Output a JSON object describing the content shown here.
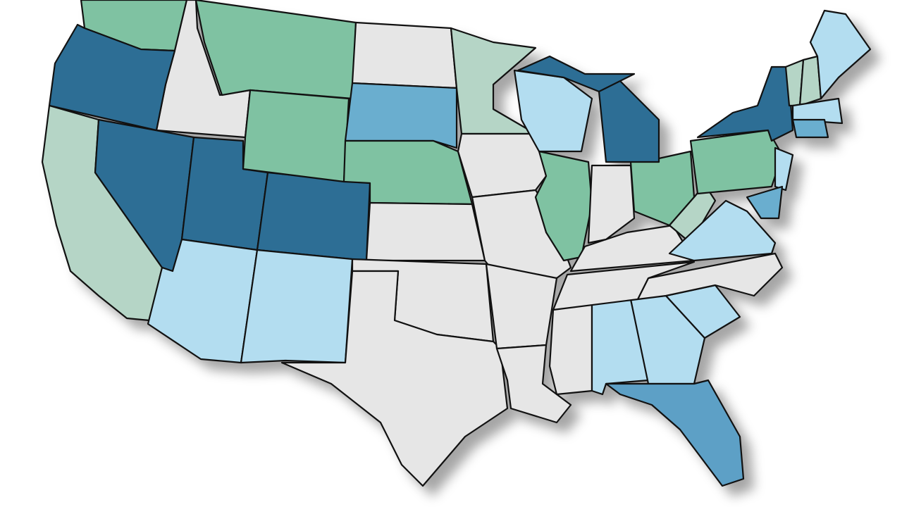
{
  "colors": [
    "#2d6e95",
    "#6aaecf",
    "#b3ddf0",
    "#7fc2a2",
    "#b5d5c6",
    "#e6e6e6",
    "#5da0c6"
  ]
}
